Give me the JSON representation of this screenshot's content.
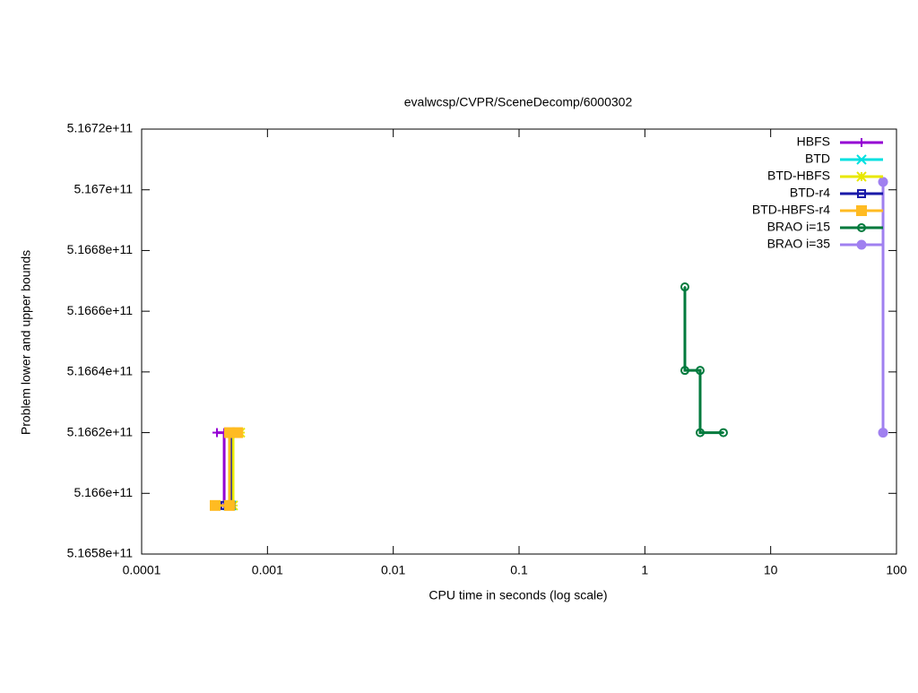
{
  "chart_data": {
    "type": "line",
    "title": "evalwcsp/CVPR/SceneDecomp/6000302",
    "x_label": "CPU time in seconds (log scale)",
    "y_label": "Problem lower and upper bounds",
    "xlog": true,
    "xlim": [
      0.0001,
      100
    ],
    "xticks": [
      0.0001,
      0.001,
      0.01,
      0.1,
      1,
      10,
      100
    ],
    "ylim": [
      516580000000,
      516720000000
    ],
    "yticks": [
      {
        "value": 516580000000,
        "label": "5.1658e+11"
      },
      {
        "value": 516600000000,
        "label": "5.166e+11"
      },
      {
        "value": 516620000000,
        "label": "5.1662e+11"
      },
      {
        "value": 516640000000,
        "label": "5.1664e+11"
      },
      {
        "value": 516660000000,
        "label": "5.1666e+11"
      },
      {
        "value": 516680000000,
        "label": "5.1668e+11"
      },
      {
        "value": 516700000000,
        "label": "5.167e+11"
      },
      {
        "value": 516720000000,
        "label": "5.1672e+11"
      }
    ],
    "legend": "top-right",
    "series": [
      {
        "name": "HBFS",
        "color": "#9400d3",
        "marker": "plus",
        "x": [
          0.000397,
          0.000453,
          0.000453
        ],
        "values": [
          516620000000,
          516620000000,
          516596000000
        ]
      },
      {
        "name": "BTD",
        "color": "#00e0e0",
        "marker": "cross",
        "x": [
          0.00048,
          0.00052,
          0.00052,
          0.00056
        ],
        "values": [
          516596000000,
          516596000000,
          516620000000,
          516620000000
        ]
      },
      {
        "name": "BTD-HBFS",
        "color": "#e8e800",
        "marker": "star",
        "x": [
          0.00049,
          0.000533,
          0.000533,
          0.000608
        ],
        "values": [
          516596000000,
          516596000000,
          516620000000,
          516620000000
        ]
      },
      {
        "name": "BTD-r4",
        "color": "#1a1aa8",
        "marker": "square-open",
        "x": [
          0.00046,
          0.00051,
          0.00051,
          0.00055
        ],
        "values": [
          516596000000,
          516596000000,
          516620000000,
          516620000000
        ]
      },
      {
        "name": "BTD-HBFS-r4",
        "color": "#ffbb22",
        "marker": "square-filled",
        "x": [
          0.000384,
          0.000499,
          0.000499,
          0.00058
        ],
        "values": [
          516596000000,
          516596000000,
          516620000000,
          516620000000
        ]
      },
      {
        "name": "BRAO i=15",
        "color": "#007a3d",
        "marker": "circle-open",
        "x": [
          2.08,
          2.08,
          2.75,
          2.75,
          4.21
        ],
        "values": [
          516668000000,
          516640500000,
          516640500000,
          516620000000,
          516620000000
        ]
      },
      {
        "name": "BRAO i=35",
        "color": "#a080f0",
        "marker": "circle-filled",
        "x": [
          78.2,
          78.2
        ],
        "values": [
          516702600000,
          516620000000
        ]
      }
    ]
  }
}
